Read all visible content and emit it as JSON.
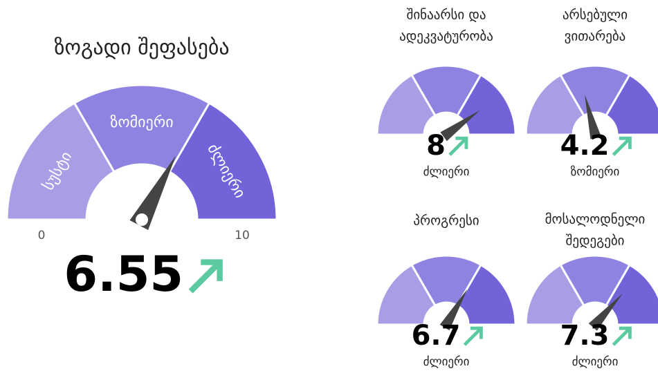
{
  "main": {
    "title": "ზოგადი შეფასება",
    "value": 6.55,
    "min": 0,
    "max": 10,
    "rating": null,
    "bands": [
      "სუსტი",
      "ზომიერი",
      "ძლიერი"
    ]
  },
  "gauges": [
    {
      "title": [
        "შინაარსი და",
        "ადეკვატურობა"
      ],
      "value": 8,
      "rating": "ძლიერი"
    },
    {
      "title": [
        "არსებული",
        "ვითარება"
      ],
      "value": 4.2,
      "rating": "ზომიერი"
    },
    {
      "title": [
        "პროგრესი"
      ],
      "value": 6.7,
      "rating": "ძლიერი"
    },
    {
      "title": [
        "მოსალოდნელი",
        "შედეგები"
      ],
      "value": 7.3,
      "rating": "ძლიერი"
    }
  ]
}
